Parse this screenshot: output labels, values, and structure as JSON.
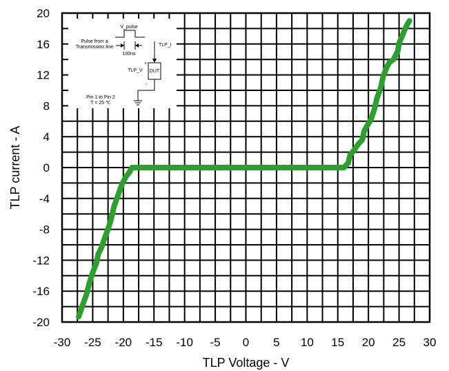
{
  "chart_data": {
    "type": "line",
    "title": "",
    "xlabel": "TLP Voltage - V",
    "ylabel": "TLP current - A",
    "xlim": [
      -30,
      30
    ],
    "ylim": [
      -20,
      20
    ],
    "xticks": [
      "-30",
      "-25",
      "-20",
      "-15",
      "-10",
      "-5",
      "0",
      "5",
      "10",
      "15",
      "20",
      "25",
      "30"
    ],
    "yticks": [
      "20",
      "16",
      "12",
      "8",
      "4",
      "0",
      "-4",
      "-8",
      "-12",
      "-16",
      "-20"
    ],
    "grid": true,
    "line_color": "#2ca02c",
    "series": [
      {
        "x": [
          -27.3,
          -26.6,
          -26.0,
          -25.6,
          -25.0,
          -24.4,
          -24.1,
          -23.6,
          -23.0,
          -22.6,
          -22.1,
          -21.9,
          -21.5,
          -21.0,
          -20.6,
          -20.2,
          -19.5,
          -19.0,
          -18.6,
          -18.1,
          -17.5,
          -17.2,
          -16.5,
          0.0,
          16.0,
          16.7,
          17.0,
          17.6,
          18.3,
          19.0,
          19.3,
          19.7,
          20.4,
          21.0,
          21.4,
          22.0,
          22.4,
          23.0,
          23.4,
          24.1,
          24.8,
          25.0,
          25.6,
          26.0,
          26.4,
          26.7
        ],
        "y": [
          -19.3,
          -17.7,
          -16.4,
          -15.1,
          -13.6,
          -12.4,
          -11.2,
          -10.4,
          -9.0,
          -8.2,
          -7.0,
          -6.3,
          -5.0,
          -3.9,
          -3.0,
          -2.1,
          -1.1,
          -0.6,
          0.0,
          0.0,
          0.0,
          0.0,
          0.0,
          0.0,
          0.0,
          0.6,
          1.6,
          2.2,
          3.0,
          3.6,
          4.7,
          5.3,
          6.2,
          7.6,
          9.0,
          10.3,
          11.8,
          13.0,
          13.6,
          14.0,
          15.1,
          16.1,
          17.2,
          18.0,
          18.6,
          19.0
        ]
      }
    ]
  },
  "inset": {
    "v_pulse": "V_pulse",
    "pulse_from_line1": "Pulse from a",
    "pulse_from_line2": "Transmission line",
    "pulse_width": "100ns",
    "tlp_i": "TLP_I",
    "tlp_v": "TLP_V",
    "plus": "+",
    "minus": "-",
    "dut": "DUT",
    "pin_line1": "Pin 1 to Pin 2",
    "pin_line2": "T = 25 ℃"
  }
}
